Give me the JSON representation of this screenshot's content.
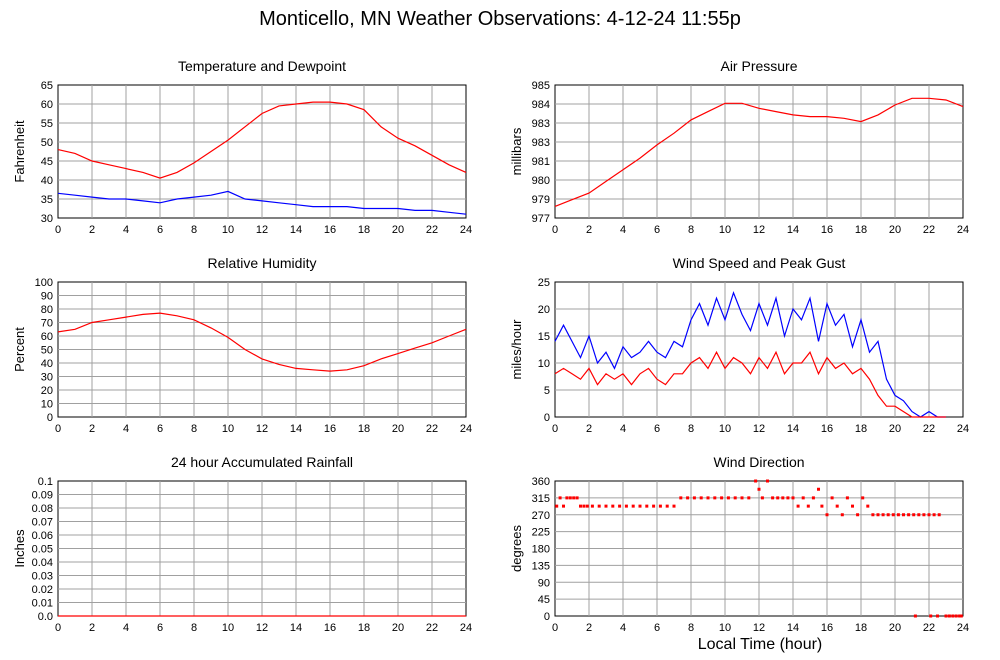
{
  "page_title": "Monticello, MN Weather Observations: 4-12-24 11:55p",
  "shared_xlabel": "Local Time (hour)",
  "chart_data": [
    {
      "type": "line",
      "title": "Temperature and Dewpoint",
      "xlabel": "",
      "ylabel": "Fahrenheit",
      "xlim": [
        0,
        24
      ],
      "ylim": [
        30,
        65
      ],
      "xticks": [
        "0",
        "2",
        "4",
        "6",
        "8",
        "10",
        "12",
        "14",
        "16",
        "18",
        "20",
        "22",
        "24"
      ],
      "yticks": [
        "30",
        "35",
        "40",
        "45",
        "50",
        "55",
        "60",
        "65"
      ],
      "grid": true,
      "series": [
        {
          "color": "#ff0000",
          "x": [
            0,
            1,
            2,
            3,
            4,
            5,
            6,
            7,
            8,
            9,
            10,
            11,
            12,
            13,
            14,
            15,
            16,
            17,
            18,
            19,
            20,
            21,
            22,
            23,
            24
          ],
          "values": [
            48,
            47,
            45,
            44,
            43,
            42,
            40.5,
            42,
            44.5,
            47.5,
            50.5,
            54,
            57.5,
            59.5,
            60,
            60.5,
            60.5,
            60,
            58.5,
            54,
            51,
            49,
            46.5,
            44,
            42
          ]
        },
        {
          "color": "#0000ff",
          "x": [
            0,
            1,
            2,
            3,
            4,
            5,
            6,
            7,
            8,
            9,
            10,
            11,
            12,
            13,
            14,
            15,
            16,
            17,
            18,
            19,
            20,
            21,
            22,
            23,
            24
          ],
          "values": [
            36.5,
            36,
            35.5,
            35,
            35,
            34.5,
            34,
            35,
            35.5,
            36,
            37,
            35,
            34.5,
            34,
            33.5,
            33,
            33,
            33,
            32.5,
            32.5,
            32.5,
            32,
            32,
            31.5,
            31
          ]
        }
      ]
    },
    {
      "type": "line",
      "title": "Air Pressure",
      "xlabel": "",
      "ylabel": "millibars",
      "xlim": [
        0,
        24
      ],
      "ylim": [
        977,
        985
      ],
      "xticks": [
        "0",
        "2",
        "4",
        "6",
        "8",
        "10",
        "12",
        "14",
        "16",
        "18",
        "20",
        "22",
        "24"
      ],
      "yticks": [
        "977",
        "979",
        "980",
        "981",
        "983",
        "983",
        "984",
        "985"
      ],
      "grid": true,
      "series": [
        {
          "color": "#ff0000",
          "x": [
            0,
            1,
            2,
            3,
            4,
            5,
            6,
            7,
            8,
            9,
            10,
            11,
            12,
            13,
            14,
            15,
            16,
            17,
            18,
            19,
            20,
            21,
            22,
            23,
            24
          ],
          "values": [
            977.7,
            978.1,
            978.5,
            979.2,
            979.9,
            980.6,
            981.4,
            982.1,
            982.9,
            983.4,
            983.9,
            983.9,
            983.6,
            983.4,
            983.2,
            983.1,
            983.1,
            983.0,
            982.8,
            983.2,
            983.8,
            984.2,
            984.2,
            984.1,
            983.7
          ]
        }
      ]
    },
    {
      "type": "line",
      "title": "Relative Humidity",
      "xlabel": "",
      "ylabel": "Percent",
      "xlim": [
        0,
        24
      ],
      "ylim": [
        0,
        100
      ],
      "xticks": [
        "0",
        "2",
        "4",
        "6",
        "8",
        "10",
        "12",
        "14",
        "16",
        "18",
        "20",
        "22",
        "24"
      ],
      "yticks": [
        "0",
        "10",
        "20",
        "30",
        "40",
        "50",
        "60",
        "70",
        "80",
        "90",
        "100"
      ],
      "grid": true,
      "series": [
        {
          "color": "#ff0000",
          "x": [
            0,
            1,
            2,
            3,
            4,
            5,
            6,
            7,
            8,
            9,
            10,
            11,
            12,
            13,
            14,
            15,
            16,
            17,
            18,
            19,
            20,
            21,
            22,
            23,
            24
          ],
          "values": [
            63,
            65,
            70,
            72,
            74,
            76,
            77,
            75,
            72,
            66,
            59,
            50,
            43,
            39,
            36,
            35,
            34,
            35,
            38,
            43,
            47,
            51,
            55,
            60,
            65
          ]
        }
      ]
    },
    {
      "type": "line",
      "title": "Wind Speed and Peak Gust",
      "xlabel": "",
      "ylabel": "miles/hour",
      "xlim": [
        0,
        24
      ],
      "ylim": [
        0,
        25
      ],
      "xticks": [
        "0",
        "2",
        "4",
        "6",
        "8",
        "10",
        "12",
        "14",
        "16",
        "18",
        "20",
        "22",
        "24"
      ],
      "yticks": [
        "0",
        "5",
        "10",
        "15",
        "20",
        "25"
      ],
      "grid": true,
      "series": [
        {
          "color": "#0000ff",
          "x": [
            0,
            0.5,
            1,
            1.5,
            2,
            2.5,
            3,
            3.5,
            4,
            4.5,
            5,
            5.5,
            6,
            6.5,
            7,
            7.5,
            8,
            8.5,
            9,
            9.5,
            10,
            10.5,
            11,
            11.5,
            12,
            12.5,
            13,
            13.5,
            14,
            14.5,
            15,
            15.5,
            16,
            16.5,
            17,
            17.5,
            18,
            18.5,
            19,
            19.5,
            20,
            20.5,
            21,
            21.5,
            22,
            22.5,
            23
          ],
          "values": [
            14,
            17,
            14,
            11,
            15,
            10,
            12,
            9,
            13,
            11,
            12,
            14,
            12,
            11,
            14,
            13,
            18,
            21,
            17,
            22,
            18,
            23,
            19,
            16,
            21,
            17,
            22,
            15,
            20,
            18,
            22,
            14,
            21,
            17,
            19,
            13,
            18,
            12,
            14,
            7,
            4,
            3,
            1,
            0,
            1,
            0,
            0
          ]
        },
        {
          "color": "#ff0000",
          "x": [
            0,
            0.5,
            1,
            1.5,
            2,
            2.5,
            3,
            3.5,
            4,
            4.5,
            5,
            5.5,
            6,
            6.5,
            7,
            7.5,
            8,
            8.5,
            9,
            9.5,
            10,
            10.5,
            11,
            11.5,
            12,
            12.5,
            13,
            13.5,
            14,
            14.5,
            15,
            15.5,
            16,
            16.5,
            17,
            17.5,
            18,
            18.5,
            19,
            19.5,
            20,
            20.5,
            21,
            21.5,
            22,
            22.5,
            23
          ],
          "values": [
            8,
            9,
            8,
            7,
            9,
            6,
            8,
            7,
            8,
            6,
            8,
            9,
            7,
            6,
            8,
            8,
            10,
            11,
            9,
            12,
            9,
            11,
            10,
            8,
            11,
            9,
            12,
            8,
            10,
            10,
            12,
            8,
            11,
            9,
            10,
            8,
            9,
            7,
            4,
            2,
            2,
            1,
            0,
            0,
            0,
            0,
            0
          ]
        }
      ]
    },
    {
      "type": "line",
      "title": "24 hour Accumulated Rainfall",
      "xlabel": "",
      "ylabel": "Inches",
      "xlim": [
        0,
        24
      ],
      "ylim": [
        0,
        0.1
      ],
      "xticks": [
        "0",
        "2",
        "4",
        "6",
        "8",
        "10",
        "12",
        "14",
        "16",
        "18",
        "20",
        "22",
        "24"
      ],
      "yticks": [
        "0.0",
        "0.01",
        "0.02",
        "0.03",
        "0.04",
        "0.05",
        "0.06",
        "0.07",
        "0.08",
        "0.09",
        "0.1"
      ],
      "grid": true,
      "series": [
        {
          "color": "#ff0000",
          "x": [
            0,
            24
          ],
          "values": [
            0,
            0
          ]
        }
      ]
    },
    {
      "type": "scatter",
      "title": "Wind Direction",
      "xlabel": "Local Time (hour)",
      "ylabel": "degrees",
      "xlim": [
        0,
        24
      ],
      "ylim": [
        0,
        360
      ],
      "xticks": [
        "0",
        "2",
        "4",
        "6",
        "8",
        "10",
        "12",
        "14",
        "16",
        "18",
        "20",
        "22",
        "24"
      ],
      "yticks": [
        "0",
        "45",
        "90",
        "135",
        "180",
        "225",
        "270",
        "315",
        "360"
      ],
      "grid": true,
      "series": [
        {
          "color": "#ff0000",
          "x": [
            0.1,
            0.3,
            0.5,
            0.7,
            0.9,
            1.1,
            1.3,
            1.5,
            1.7,
            1.9,
            2.2,
            2.6,
            3.0,
            3.4,
            3.8,
            4.2,
            4.6,
            5.0,
            5.4,
            5.8,
            6.2,
            6.6,
            7.0,
            7.4,
            7.8,
            8.2,
            8.6,
            9.0,
            9.4,
            9.8,
            10.2,
            10.6,
            11.0,
            11.4,
            11.8,
            12.0,
            12.2,
            12.5,
            12.8,
            13.1,
            13.4,
            13.7,
            14.0,
            14.3,
            14.6,
            14.9,
            15.2,
            15.5,
            15.7,
            16.0,
            16.3,
            16.6,
            16.9,
            17.2,
            17.5,
            17.8,
            18.1,
            18.4,
            18.7,
            19.0,
            19.3,
            19.6,
            19.9,
            20.2,
            20.5,
            20.8,
            21.1,
            21.4,
            21.7,
            22.0,
            22.3,
            22.6,
            23.0,
            23.4,
            23.8,
            21.2,
            22.1,
            22.5,
            23.2,
            23.6,
            23.9
          ],
          "values": [
            293,
            315,
            293,
            315,
            315,
            315,
            315,
            293,
            293,
            293,
            293,
            293,
            293,
            293,
            293,
            293,
            293,
            293,
            293,
            293,
            293,
            293,
            293,
            315,
            315,
            315,
            315,
            315,
            315,
            315,
            315,
            315,
            315,
            315,
            360,
            338,
            315,
            360,
            315,
            315,
            315,
            315,
            315,
            293,
            315,
            293,
            315,
            338,
            293,
            270,
            315,
            293,
            270,
            315,
            293,
            270,
            315,
            293,
            270,
            270,
            270,
            270,
            270,
            270,
            270,
            270,
            270,
            270,
            270,
            270,
            270,
            270,
            0,
            0,
            0,
            0,
            0,
            0,
            0,
            0,
            0
          ]
        }
      ]
    }
  ]
}
